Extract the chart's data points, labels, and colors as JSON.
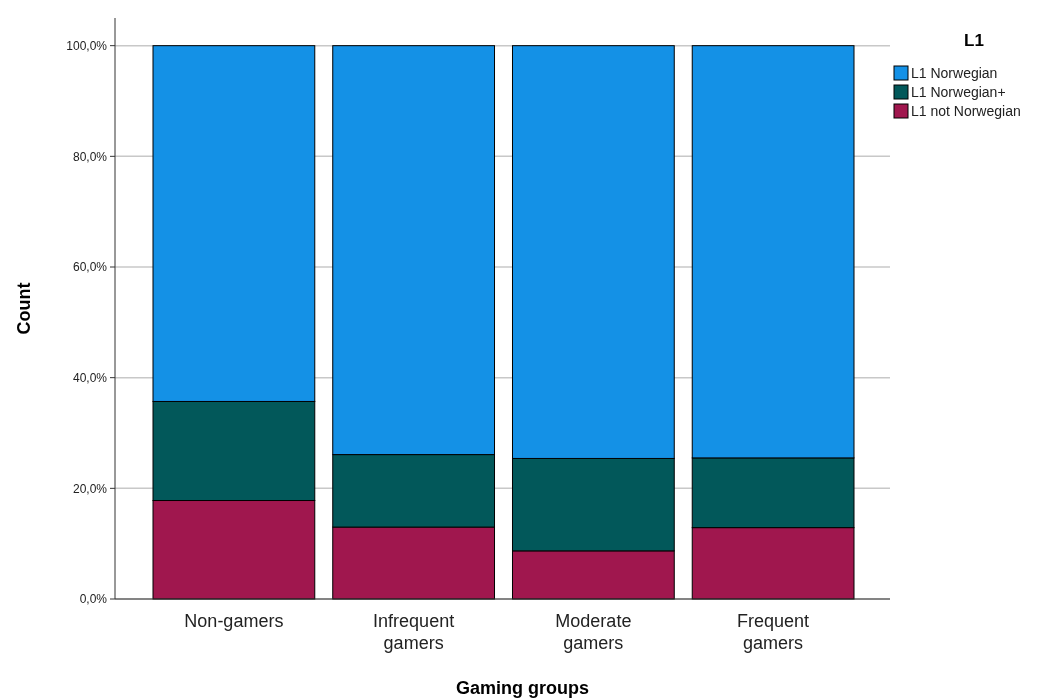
{
  "chart_data": {
    "type": "bar",
    "stacked": true,
    "xlabel": "Gaming groups",
    "ylabel": "Count",
    "legend_title": "L1",
    "legend": "top right",
    "grid": "y",
    "categories": [
      "Non-gamers",
      "Infrequent gamers",
      "Moderate gamers",
      "Frequent gamers"
    ],
    "ylim": [
      0,
      105
    ],
    "yticks": [
      {
        "value": 0,
        "label": "0,0%"
      },
      {
        "value": 20,
        "label": "20,0%"
      },
      {
        "value": 40,
        "label": "40,0%"
      },
      {
        "value": 60,
        "label": "60,0%"
      },
      {
        "value": 80,
        "label": "80,0%"
      },
      {
        "value": 100,
        "label": "100,0%"
      }
    ],
    "series": [
      {
        "name": "L1 not Norwegian",
        "color": "#a0174e",
        "values": [
          17.8,
          13.0,
          8.7,
          12.9
        ]
      },
      {
        "name": "L1 Norwegian+",
        "color": "#02585a",
        "values": [
          17.9,
          13.1,
          16.7,
          12.6
        ]
      },
      {
        "name": "L1 Norwegian",
        "color": "#1491e6",
        "values": [
          64.3,
          73.9,
          74.6,
          74.5
        ]
      }
    ]
  }
}
